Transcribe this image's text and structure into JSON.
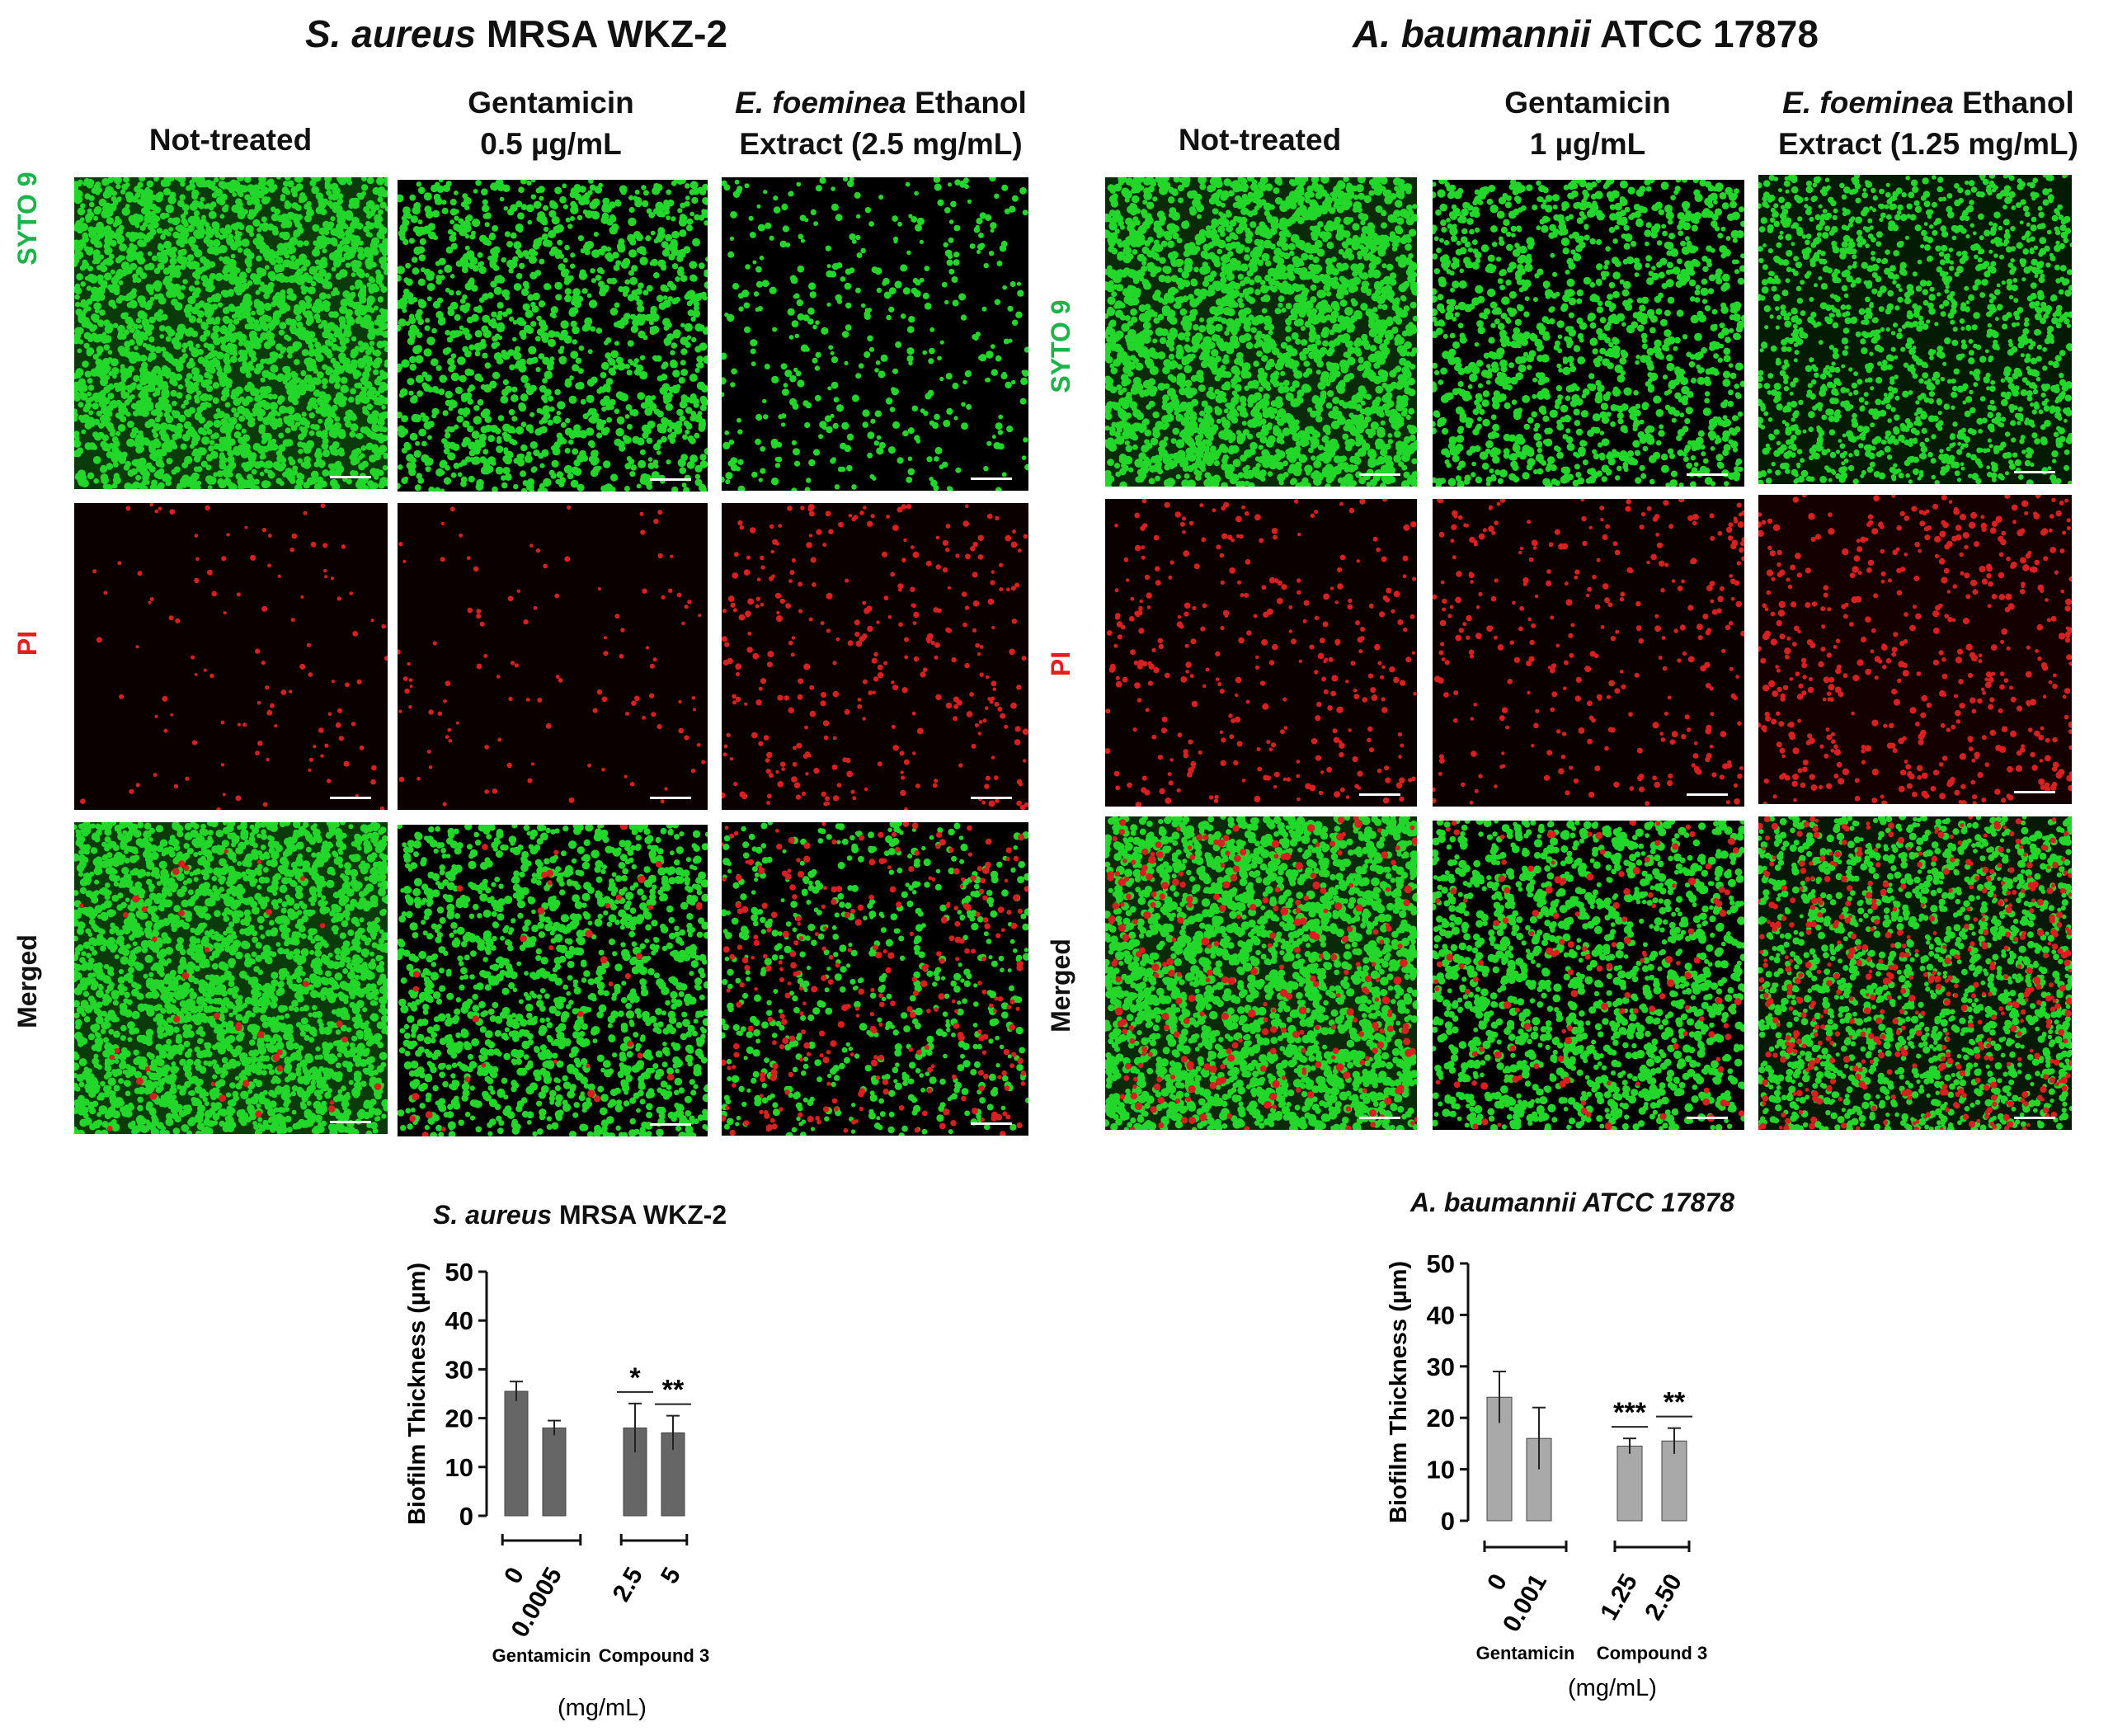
{
  "left_panel": {
    "title_italic": "S. aureus",
    "title_rest": " MRSA WKZ-2",
    "columns": [
      {
        "line1": "Not-treated",
        "line2": ""
      },
      {
        "line1": "Gentamicin",
        "line2": "0.5 µg/mL"
      },
      {
        "line1_italic": "E. foeminea",
        "line1_rest": " Ethanol",
        "line2": "Extract (2.5 mg/mL)"
      }
    ]
  },
  "right_panel": {
    "title_italic": "A. baumannii",
    "title_rest": " ATCC 17878",
    "columns": [
      {
        "line1": "Not-treated",
        "line2": ""
      },
      {
        "line1": "Gentamicin",
        "line2": "1 µg/mL"
      },
      {
        "line1_italic": "E. foeminea",
        "line1_rest": " Ethanol",
        "line2": "Extract (1.25 mg/mL)"
      }
    ]
  },
  "rows": [
    {
      "label": "SYTO 9",
      "color": "#1db34a"
    },
    {
      "label": "PI",
      "color": "#e02020"
    },
    {
      "label": "Merged",
      "color": "#111111"
    }
  ],
  "colors": {
    "syto9": "#22d62a",
    "pi": "#d92020",
    "tile_bg": "#000000",
    "bar_left": "#666666",
    "bar_right": "#a9a9a9"
  },
  "chart_data": [
    {
      "type": "bar",
      "title_italic": "S. aureus",
      "title_rest": " MRSA WKZ-2",
      "ylabel": "Biofilm Thickness (µm)",
      "ylim": [
        0,
        50
      ],
      "yticks": [
        0,
        10,
        20,
        30,
        40,
        50
      ],
      "categories": [
        "0",
        "0.0005",
        "2.5",
        "5"
      ],
      "values": [
        25.5,
        18,
        18,
        17
      ],
      "errors": [
        2,
        1.5,
        5,
        3.5
      ],
      "significance": [
        "",
        "",
        "*",
        "**"
      ],
      "groups": [
        {
          "label": "Gentamicin",
          "members": [
            0,
            1
          ]
        },
        {
          "label": "Compound 3",
          "members": [
            2,
            3
          ]
        }
      ],
      "xunit": "(mg/mL)",
      "bar_color": "#666666"
    },
    {
      "type": "bar",
      "title": "A. baumannii ATCC 17878",
      "ylabel": "Biofilm Thickness (µm)",
      "ylim": [
        0,
        50
      ],
      "yticks": [
        0,
        10,
        20,
        30,
        40,
        50
      ],
      "categories": [
        "0",
        "0.001",
        "1.25",
        "2.50"
      ],
      "values": [
        24,
        16,
        14.5,
        15.5
      ],
      "errors": [
        5,
        6,
        1.5,
        2.5
      ],
      "significance": [
        "",
        "",
        "***",
        "**"
      ],
      "groups": [
        {
          "label": "Gentamicin",
          "members": [
            0,
            1
          ]
        },
        {
          "label": "Compound 3",
          "members": [
            2,
            3
          ]
        }
      ],
      "xunit": "(mg/mL)",
      "bar_color": "#a9a9a9"
    }
  ]
}
